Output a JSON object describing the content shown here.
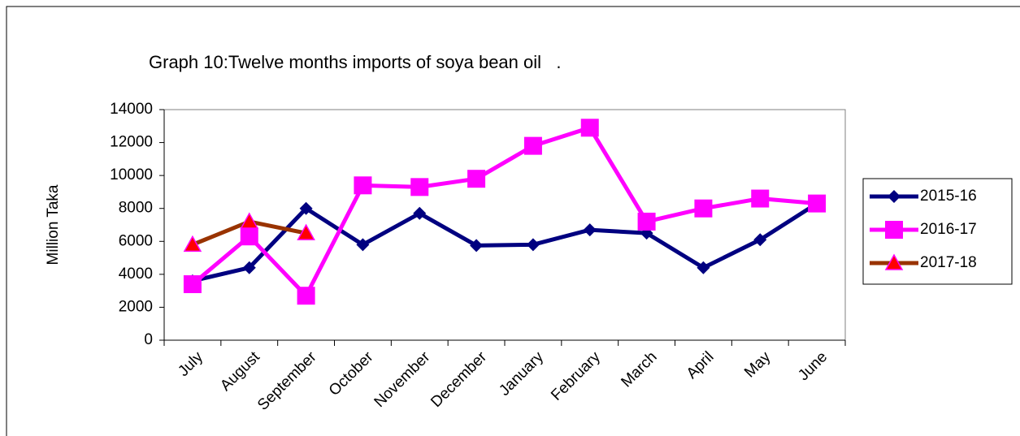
{
  "chart_data": {
    "type": "line",
    "title": "Graph 10:Twelve months imports of soya bean oil   .",
    "y_label": "Million Taka",
    "categories": [
      "July",
      "August",
      "September",
      "October",
      "November",
      "December",
      "January",
      "February",
      "March",
      "April",
      "May",
      "June"
    ],
    "series": [
      {
        "name": "2015-16",
        "color": "#000080",
        "marker": "diamond",
        "marker_color": "#000080",
        "values": [
          3600,
          4400,
          8000,
          5800,
          7700,
          5750,
          5800,
          6700,
          6500,
          4400,
          6100,
          8300
        ]
      },
      {
        "name": "2016-17",
        "color": "#ff00ff",
        "marker": "square",
        "marker_color": "#ff00ff",
        "values": [
          3400,
          6300,
          2700,
          9400,
          9300,
          9800,
          11800,
          12900,
          7200,
          8000,
          8600,
          8300
        ]
      },
      {
        "name": "2017-18",
        "color": "#993300",
        "marker": "triangle",
        "marker_color": "#ff0000",
        "values": [
          5800,
          7200,
          6500,
          null,
          null,
          null,
          null,
          null,
          null,
          null,
          null,
          null
        ]
      }
    ],
    "ylim": [
      0,
      14000
    ],
    "yticks": [
      0,
      2000,
      4000,
      6000,
      8000,
      10000,
      12000,
      14000
    ],
    "grid": false,
    "legend": "right"
  }
}
